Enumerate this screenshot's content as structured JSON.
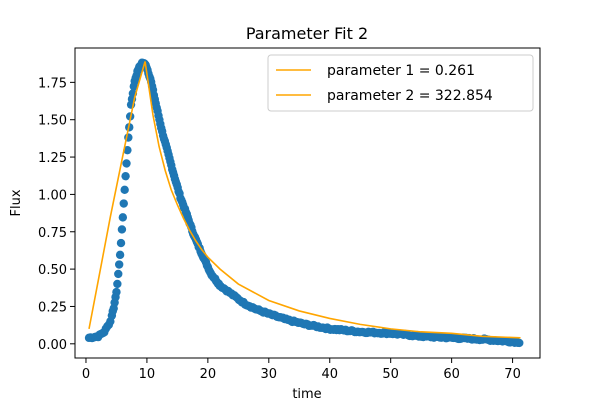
{
  "chart_data": {
    "type": "scatter",
    "title": "Parameter Fit 2",
    "xlabel": "time",
    "ylabel": "Flux",
    "xlim": [
      -1.8,
      74.5
    ],
    "ylim": [
      -0.095,
      1.98
    ],
    "xticks": [
      0,
      10,
      20,
      30,
      40,
      50,
      60,
      70
    ],
    "yticks": [
      0.0,
      0.25,
      0.5,
      0.75,
      1.0,
      1.25,
      1.5,
      1.75
    ],
    "ytick_labels": [
      "0.00",
      "0.25",
      "0.50",
      "0.75",
      "1.00",
      "1.25",
      "1.50",
      "1.75"
    ],
    "grid": false,
    "legend_position": "top-right",
    "colors": {
      "points": "#1f77b4",
      "fit": "#ffa500"
    },
    "scatter_anchors": [
      [
        0.5,
        0.04
      ],
      [
        2.0,
        0.05
      ],
      [
        3.0,
        0.08
      ],
      [
        4.0,
        0.15
      ],
      [
        4.6,
        0.25
      ],
      [
        5.0,
        0.35
      ],
      [
        5.4,
        0.5
      ],
      [
        5.8,
        0.7
      ],
      [
        6.3,
        1.0
      ],
      [
        6.8,
        1.3
      ],
      [
        7.4,
        1.6
      ],
      [
        8.0,
        1.76
      ],
      [
        8.6,
        1.84
      ],
      [
        9.2,
        1.88
      ],
      [
        9.8,
        1.87
      ],
      [
        10.6,
        1.77
      ],
      [
        11.5,
        1.6
      ],
      [
        12.5,
        1.42
      ],
      [
        13.5,
        1.27
      ],
      [
        14.5,
        1.12
      ],
      [
        15.5,
        0.98
      ],
      [
        16.5,
        0.87
      ],
      [
        17.5,
        0.75
      ],
      [
        18.5,
        0.65
      ],
      [
        19.5,
        0.56
      ],
      [
        20.5,
        0.47
      ],
      [
        22.0,
        0.39
      ],
      [
        24.0,
        0.33
      ],
      [
        26.0,
        0.27
      ],
      [
        28.0,
        0.23
      ],
      [
        30.0,
        0.2
      ],
      [
        33.0,
        0.16
      ],
      [
        36.0,
        0.13
      ],
      [
        40.0,
        0.1
      ],
      [
        45.0,
        0.08
      ],
      [
        50.0,
        0.07
      ],
      [
        55.0,
        0.05
      ],
      [
        60.0,
        0.04
      ],
      [
        65.0,
        0.03
      ],
      [
        71.3,
        0.01
      ]
    ],
    "series": [
      {
        "name": "parameter 1 = 0.261",
        "kind": "line"
      },
      {
        "name": "parameter 2 = 322.854",
        "kind": "line"
      }
    ],
    "fit_line": [
      [
        0.5,
        0.1
      ],
      [
        2.0,
        0.42
      ],
      [
        4.0,
        0.85
      ],
      [
        6.0,
        1.25
      ],
      [
        8.0,
        1.65
      ],
      [
        9.7,
        1.89
      ],
      [
        11.0,
        1.53
      ],
      [
        12.0,
        1.32
      ],
      [
        13.0,
        1.16
      ],
      [
        14.0,
        1.03
      ],
      [
        15.0,
        0.93
      ],
      [
        16.0,
        0.84
      ],
      [
        17.0,
        0.76
      ],
      [
        18.0,
        0.69
      ],
      [
        19.0,
        0.63
      ],
      [
        20.0,
        0.58
      ],
      [
        22.0,
        0.5
      ],
      [
        25.0,
        0.4
      ],
      [
        30.0,
        0.29
      ],
      [
        35.0,
        0.22
      ],
      [
        40.0,
        0.17
      ],
      [
        45.0,
        0.13
      ],
      [
        50.0,
        0.1
      ],
      [
        55.0,
        0.08
      ],
      [
        60.0,
        0.07
      ],
      [
        65.0,
        0.05
      ],
      [
        71.3,
        0.04
      ]
    ]
  }
}
